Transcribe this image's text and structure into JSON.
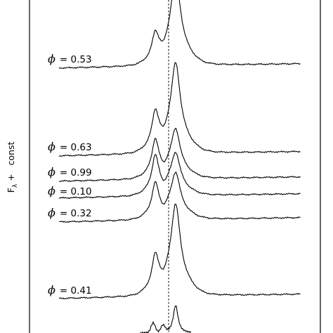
{
  "chart_data": {
    "type": "line",
    "ylabel": "F",
    "ylabel_subscript": "λ",
    "ylabel_suffix": "+   const",
    "phase_symbol": "ϕ",
    "series": [
      {
        "name": "0.53"
      },
      {
        "name": "0.63"
      },
      {
        "name": "0.99"
      },
      {
        "name": "0.10"
      },
      {
        "name": "0.32"
      },
      {
        "name": "0.41"
      }
    ],
    "reference_line": "dotted vertical",
    "grid": false
  }
}
